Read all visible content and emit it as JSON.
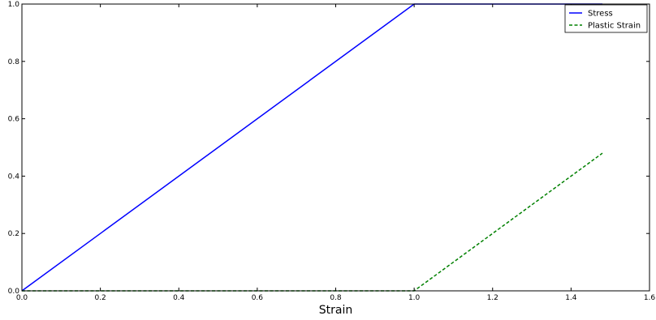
{
  "chart_data": {
    "type": "line",
    "title": "",
    "xlabel": "Strain",
    "ylabel": "",
    "xlim": [
      0,
      1.6
    ],
    "ylim": [
      0,
      1.0
    ],
    "xticks": [
      0.0,
      0.2,
      0.4,
      0.6,
      0.8,
      1.0,
      1.2,
      1.4,
      1.6
    ],
    "yticks": [
      0.0,
      0.2,
      0.4,
      0.6,
      0.8,
      1.0
    ],
    "xtick_labels": [
      "0.0",
      "0.2",
      "0.4",
      "0.6",
      "0.8",
      "1.0",
      "1.2",
      "1.4",
      "1.6"
    ],
    "ytick_labels": [
      "0.0",
      "0.2",
      "0.4",
      "0.6",
      "0.8",
      "1.0"
    ],
    "grid": false,
    "legend_position": "top-right",
    "series": [
      {
        "name": "Stress",
        "color": "#0000ff",
        "style": "solid",
        "x": [
          0.0,
          1.0,
          1.48
        ],
        "y": [
          0.0,
          1.0,
          1.0
        ]
      },
      {
        "name": "Plastic Strain",
        "color": "#008000",
        "style": "dashed",
        "x": [
          0.0,
          1.0,
          1.48
        ],
        "y": [
          0.0,
          0.0,
          0.48
        ]
      }
    ]
  }
}
